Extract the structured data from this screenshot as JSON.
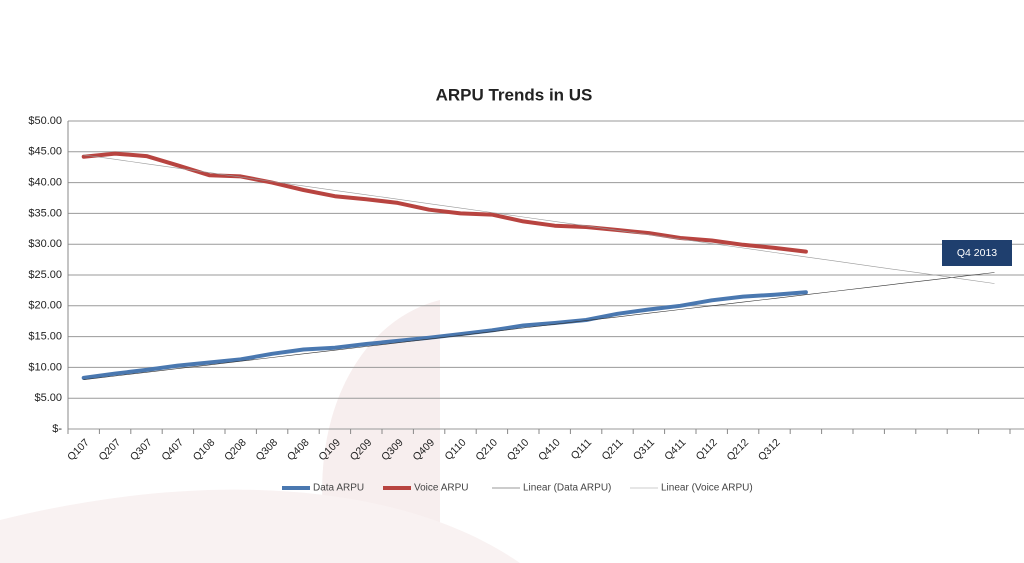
{
  "chart_data": {
    "type": "line",
    "title": "ARPU Trends in US",
    "categories": [
      "Q107",
      "Q207",
      "Q307",
      "Q407",
      "Q108",
      "Q208",
      "Q308",
      "Q408",
      "Q109",
      "Q209",
      "Q309",
      "Q409",
      "Q110",
      "Q210",
      "Q310",
      "Q410",
      "Q111",
      "Q211",
      "Q311",
      "Q411",
      "Q112",
      "Q212",
      "Q312",
      null,
      null,
      null,
      null,
      null,
      null,
      null
    ],
    "series": [
      {
        "name": "Data ARPU",
        "color": "#4a78b0",
        "width": 4,
        "values": [
          8.3,
          9.0,
          9.6,
          10.3,
          10.8,
          11.3,
          12.2,
          12.9,
          13.2,
          13.8,
          14.3,
          14.8,
          15.4,
          16.0,
          16.8,
          17.2,
          17.7,
          18.7,
          19.4,
          20.0,
          20.9,
          21.5,
          21.8,
          22.2,
          null,
          null,
          null,
          null,
          null,
          null
        ]
      },
      {
        "name": "Voice ARPU",
        "color": "#b84440",
        "width": 4,
        "values": [
          44.2,
          44.7,
          44.3,
          42.8,
          41.2,
          41.0,
          40.0,
          38.8,
          37.8,
          37.3,
          36.7,
          35.6,
          35.0,
          34.8,
          33.7,
          33.0,
          32.8,
          32.3,
          31.8,
          31.0,
          30.6,
          29.9,
          29.4,
          28.8,
          null,
          null,
          null,
          null,
          null,
          null
        ]
      },
      {
        "name": "Linear (Data ARPU)",
        "color": "#333333",
        "width": 0.6,
        "values": [
          8.0,
          8.6,
          9.2,
          9.8,
          10.4,
          11.0,
          11.6,
          12.2,
          12.8,
          13.4,
          14.0,
          14.6,
          15.2,
          15.8,
          16.4,
          17.0,
          17.6,
          18.2,
          18.8,
          19.4,
          20.0,
          20.6,
          21.2,
          21.8,
          22.4,
          23.0,
          23.6,
          24.2,
          24.8,
          25.4
        ]
      },
      {
        "name": "Linear (Voice ARPU)",
        "color": "#999999",
        "width": 0.6,
        "values": [
          44.5,
          43.78,
          43.06,
          42.34,
          41.62,
          40.9,
          40.18,
          39.46,
          38.74,
          38.02,
          37.3,
          36.58,
          35.86,
          35.14,
          34.42,
          33.7,
          32.98,
          32.26,
          31.54,
          30.82,
          30.1,
          29.38,
          28.66,
          27.94,
          27.22,
          26.5,
          25.78,
          25.06,
          24.34,
          23.62
        ]
      }
    ],
    "ylim": [
      0,
      50
    ],
    "yticks": [
      {
        "value": 0,
        "label": "$-"
      },
      {
        "value": 5,
        "label": "$5.00"
      },
      {
        "value": 10,
        "label": "$10.00"
      },
      {
        "value": 15,
        "label": "$15.00"
      },
      {
        "value": 20,
        "label": "$20.00"
      },
      {
        "value": 25,
        "label": "$25.00"
      },
      {
        "value": 30,
        "label": "$30.00"
      },
      {
        "value": 35,
        "label": "$35.00"
      },
      {
        "value": 40,
        "label": "$40.00"
      },
      {
        "value": 45,
        "label": "$45.00"
      },
      {
        "value": 50,
        "label": "$50.00"
      }
    ],
    "grid": true,
    "legend": "bottom",
    "annotation": "Q4 2013"
  }
}
